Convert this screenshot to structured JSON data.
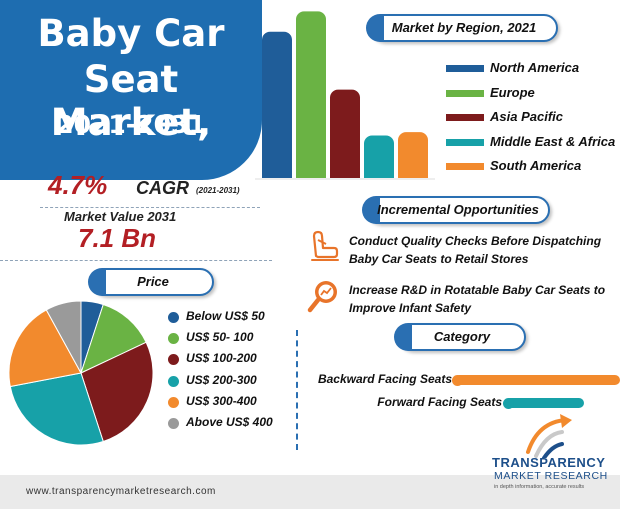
{
  "title": {
    "line1": "Baby Car",
    "line2": "Seat Market,",
    "line3": "2021-2031"
  },
  "cagr": {
    "value": "4.7%",
    "label": "CAGR",
    "years": "(2021-2031)"
  },
  "market_value": {
    "label": "Market Value 2031",
    "value": "7.1 Bn"
  },
  "region_section": {
    "title": "Market by Region, 2021"
  },
  "incremental": {
    "title": "Incremental Opportunities",
    "items": [
      {
        "text_line1": "Conduct Quality Checks Before Dispatching",
        "text_line2": "Baby Car Seats to Retail Stores",
        "icon": "car-seat-icon"
      },
      {
        "text_line1": "Increase R&D in Rotatable Baby Car Seats to",
        "text_line2": "Improve Infant Safety",
        "icon": "research-magnifier-icon"
      }
    ]
  },
  "category_section": {
    "title": "Category",
    "items": [
      {
        "label": "Backward Facing Seats",
        "color": "#f28a2d"
      },
      {
        "label": "Forward Facing Seats",
        "color": "#17a1a8"
      }
    ]
  },
  "price_section": {
    "title": "Price"
  },
  "footer": {
    "url": "www.transparencymarketresearch.com",
    "logo_line1": "TRANSPARENCY",
    "logo_line2": "MARKET RESEARCH",
    "logo_line3": "in depth information, accurate results"
  },
  "chart_data": [
    {
      "type": "bar",
      "title": "Market by Region, 2021",
      "categories": [
        "North America",
        "Europe",
        "Asia Pacific",
        "Middle East & Africa",
        "South America"
      ],
      "values": [
        86,
        98,
        52,
        25,
        27
      ],
      "colors": [
        "#1f5d99",
        "#6ab344",
        "#7d1b1c",
        "#17a1a8",
        "#f28a2d"
      ],
      "ylim": [
        0,
        100
      ],
      "grid": false,
      "legend": "right",
      "xlabel": "",
      "ylabel": ""
    },
    {
      "type": "pie",
      "title": "Price",
      "labels": [
        "Below US$ 50",
        "US$ 50- 100",
        "US$ 100-200",
        "US$ 200-300",
        "US$ 300-400",
        "Above US$ 400"
      ],
      "values": [
        5,
        13,
        27,
        27,
        20,
        8
      ],
      "colors": [
        "#1f5d99",
        "#6ab344",
        "#7d1b1c",
        "#17a1a8",
        "#f28a2d",
        "#9a9a9a"
      ],
      "legend": "right"
    },
    {
      "type": "bar",
      "title": "Category",
      "orientation": "horizontal",
      "categories": [
        "Backward Facing Seats",
        "Forward Facing Seats"
      ],
      "values": [
        100,
        69
      ],
      "colors": [
        "#f28a2d",
        "#17a1a8"
      ],
      "ylim": [
        0,
        100
      ]
    }
  ]
}
